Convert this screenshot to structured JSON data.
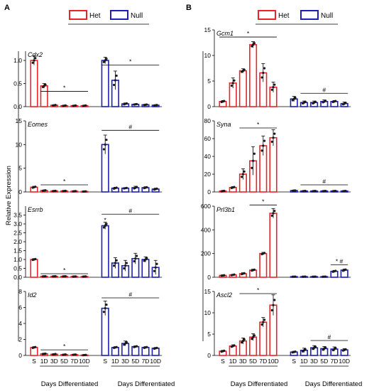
{
  "colors": {
    "het": "#e8232a",
    "null": "#1d1db8",
    "axis": "#000000",
    "dot": "#1a1a1a"
  },
  "legend": [
    {
      "label": "Het",
      "color": "#e8232a"
    },
    {
      "label": "Null",
      "color": "#1d1db8"
    }
  ],
  "chart_data": [
    {
      "panel": "A",
      "type": "bar",
      "ylabel": "Relative Expression",
      "xlabel_groups": [
        "Days Differentiated",
        "Days Differentiated"
      ],
      "categories": [
        "S",
        "1D",
        "3D",
        "5D",
        "7D",
        "10D",
        "S",
        "1D",
        "3D",
        "5D",
        "7D",
        "10D"
      ],
      "subplots": [
        {
          "gene": "Cdx2",
          "ylim": [
            0,
            1.2
          ],
          "yticks": [
            "0.0",
            "0.5",
            "1.0"
          ],
          "yvalues": [
            0,
            0.5,
            1.0
          ],
          "series": [
            {
              "name": "Het",
              "values": [
                1.0,
                0.45,
                0.03,
                0.02,
                0.02,
                0.02
              ],
              "err": [
                0.1,
                0.05,
                0.01,
                0.01,
                0.01,
                0.01
              ]
            },
            {
              "name": "Null",
              "values": [
                1.0,
                0.57,
                0.06,
                0.05,
                0.04,
                0.03
              ],
              "err": [
                0.07,
                0.2,
                0.02,
                0.01,
                0.01,
                0.01
              ]
            }
          ],
          "annotations": [
            {
              "series": 0,
              "from": 1,
              "to": 5,
              "y": 0.33,
              "text": "*"
            },
            {
              "series": 1,
              "from": 0,
              "to": 5,
              "y": 0.9,
              "text": "*"
            }
          ]
        },
        {
          "gene": "Eomes",
          "ylim": [
            0,
            15
          ],
          "yticks": [
            "0",
            "5",
            "10",
            "15"
          ],
          "yvalues": [
            0,
            5,
            10,
            15
          ],
          "series": [
            {
              "name": "Het",
              "values": [
                1.0,
                0.3,
                0.2,
                0.2,
                0.15,
                0.1
              ],
              "err": [
                0.2,
                0.1,
                0.05,
                0.05,
                0.05,
                0.05
              ]
            },
            {
              "name": "Null",
              "values": [
                10.0,
                0.8,
                0.8,
                0.9,
                0.9,
                0.6
              ],
              "err": [
                2.0,
                0.2,
                0.1,
                0.3,
                0.2,
                0.2
              ]
            }
          ],
          "annotations": [
            {
              "series": 0,
              "from": 1,
              "to": 5,
              "y": 1.5,
              "text": "*"
            },
            {
              "series": 1,
              "from": 0,
              "to": 5,
              "y": 13.0,
              "text": "#"
            }
          ]
        },
        {
          "gene": "Esrrb",
          "ylim": [
            0,
            4.0
          ],
          "yticks": [
            "0.0",
            "0.5",
            "1.0",
            "1.5",
            "2.0",
            "2.5",
            "3.0",
            "3.5"
          ],
          "yvalues": [
            0,
            0.5,
            1.0,
            1.5,
            2.0,
            2.5,
            3.0,
            3.5
          ],
          "series": [
            {
              "name": "Het",
              "values": [
                1.0,
                0.05,
                0.05,
                0.05,
                0.04,
                0.04
              ],
              "err": [
                0.05,
                0.01,
                0.01,
                0.01,
                0.01,
                0.01
              ]
            },
            {
              "name": "Null",
              "values": [
                2.9,
                0.8,
                0.65,
                1.05,
                1.0,
                0.55
              ],
              "err": [
                0.2,
                0.3,
                0.3,
                0.3,
                0.15,
                0.4
              ]
            }
          ],
          "annotations": [
            {
              "series": 0,
              "from": 1,
              "to": 5,
              "y": 0.2,
              "text": "*"
            },
            {
              "series": 1,
              "from": 0,
              "to": 5,
              "y": 3.55,
              "text": "#"
            },
            {
              "series": 1,
              "at": 0,
              "y": 3.1,
              "text": "*"
            }
          ]
        },
        {
          "gene": "Id2",
          "ylim": [
            0,
            8
          ],
          "yticks": [
            "0",
            "2",
            "4",
            "6",
            "8"
          ],
          "yvalues": [
            0,
            2,
            4,
            6,
            8
          ],
          "series": [
            {
              "name": "Het",
              "values": [
                1.0,
                0.2,
                0.15,
                0.1,
                0.1,
                0.05
              ],
              "err": [
                0.1,
                0.05,
                0.05,
                0.05,
                0.03,
                0.03
              ]
            },
            {
              "name": "Null",
              "values": [
                5.9,
                1.0,
                1.5,
                1.1,
                1.0,
                0.9
              ],
              "err": [
                0.9,
                0.1,
                0.3,
                0.1,
                0.1,
                0.1
              ]
            }
          ],
          "annotations": [
            {
              "series": 0,
              "from": 1,
              "to": 5,
              "y": 0.7,
              "text": "*"
            },
            {
              "series": 1,
              "from": 0,
              "to": 5,
              "y": 7.2,
              "text": "#"
            }
          ]
        }
      ]
    },
    {
      "panel": "B",
      "type": "bar",
      "ylabel": "",
      "xlabel_groups": [
        "Days Differentiated",
        "Days Differentiated"
      ],
      "categories": [
        "S",
        "1D",
        "3D",
        "5D",
        "7D",
        "10D",
        "S",
        "1D",
        "3D",
        "5D",
        "7D",
        "10D"
      ],
      "subplots": [
        {
          "gene": "Gcm1",
          "ylim": [
            0,
            15
          ],
          "yticks": [
            "0",
            "5",
            "10",
            "15"
          ],
          "yvalues": [
            0,
            5,
            10,
            15
          ],
          "series": [
            {
              "name": "Het",
              "values": [
                1.0,
                4.6,
                7.0,
                12.1,
                6.6,
                3.8
              ],
              "err": [
                0.2,
                1.0,
                0.4,
                0.6,
                1.8,
                1.0
              ]
            },
            {
              "name": "Null",
              "values": [
                1.5,
                0.8,
                0.8,
                1.0,
                1.0,
                0.6
              ],
              "err": [
                0.5,
                0.3,
                0.3,
                0.3,
                0.2,
                0.3
              ]
            }
          ],
          "annotations": [
            {
              "series": 0,
              "from": 0,
              "to": 5,
              "y": 13.6,
              "text": "*"
            },
            {
              "series": 1,
              "from": 1,
              "to": 5,
              "y": 2.6,
              "text": "#"
            }
          ]
        },
        {
          "gene": "Syna",
          "ylim": [
            0,
            80
          ],
          "yticks": [
            "0",
            "20",
            "40",
            "60",
            "80"
          ],
          "yvalues": [
            0,
            20,
            40,
            60,
            80
          ],
          "series": [
            {
              "name": "Het",
              "values": [
                1.0,
                5.0,
                20.0,
                35.0,
                52.0,
                61.0
              ],
              "err": [
                0.5,
                1.0,
                6.0,
                16.0,
                11.0,
                9.0
              ]
            },
            {
              "name": "Null",
              "values": [
                1.5,
                1.0,
                1.0,
                1.0,
                1.0,
                1.0
              ],
              "err": [
                0.3,
                0.3,
                0.3,
                0.3,
                0.3,
                0.3
              ]
            }
          ],
          "annotations": [
            {
              "series": 0,
              "from": 2,
              "to": 5,
              "y": 72,
              "text": "*"
            },
            {
              "series": 1,
              "from": 1,
              "to": 5,
              "y": 8,
              "text": "#"
            }
          ]
        },
        {
          "gene": "Prl3b1",
          "ylim": [
            0,
            600
          ],
          "yticks": [
            "0",
            "200",
            "400",
            "600"
          ],
          "yvalues": [
            0,
            200,
            400,
            600
          ],
          "series": [
            {
              "name": "Het",
              "values": [
                15,
                20,
                30,
                60,
                200,
                540
              ],
              "err": [
                3,
                5,
                8,
                8,
                10,
                40
              ]
            },
            {
              "name": "Null",
              "values": [
                5,
                5,
                5,
                5,
                50,
                60
              ],
              "err": [
                1,
                1,
                1,
                1,
                8,
                10
              ]
            }
          ],
          "annotations": [
            {
              "series": 0,
              "from": 3,
              "to": 5,
              "y": 610,
              "text": "*"
            },
            {
              "series": 1,
              "from": 4,
              "to": 5,
              "y": 105,
              "text": "* #"
            }
          ]
        },
        {
          "gene": "Ascl2",
          "ylim": [
            0,
            15
          ],
          "yticks": [
            "0",
            "5",
            "10",
            "15"
          ],
          "yvalues": [
            0,
            5,
            10,
            15
          ],
          "series": [
            {
              "name": "Het",
              "values": [
                1.0,
                2.2,
                3.4,
                4.3,
                7.8,
                11.8
              ],
              "err": [
                0.2,
                0.3,
                0.7,
                0.8,
                1.1,
                2.4
              ]
            },
            {
              "name": "Null",
              "values": [
                0.8,
                1.2,
                1.8,
                1.6,
                1.5,
                1.3
              ],
              "err": [
                0.2,
                0.5,
                0.5,
                0.5,
                0.5,
                0.3
              ]
            }
          ],
          "annotations": [
            {
              "series": 0,
              "from": 2,
              "to": 5,
              "y": 14.5,
              "text": "*"
            },
            {
              "series": 1,
              "from": 2,
              "to": 5,
              "y": 3.5,
              "text": "#"
            }
          ]
        }
      ]
    }
  ]
}
